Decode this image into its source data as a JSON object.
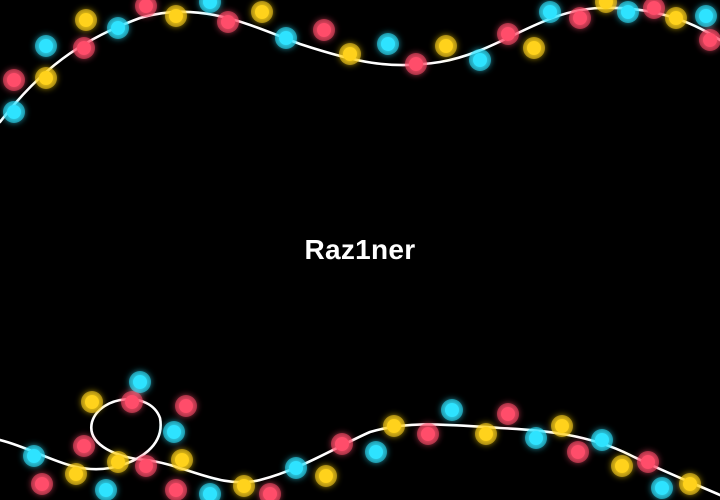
{
  "screen": {
    "background": "#000000",
    "username": "Raz1ner"
  },
  "decoration": {
    "type": "string-lights",
    "wire_color": "#ffffff",
    "bulb_colors": {
      "red": "#ff4d6a",
      "cyan": "#2fe3ff",
      "yellow": "#ffd21a"
    }
  }
}
